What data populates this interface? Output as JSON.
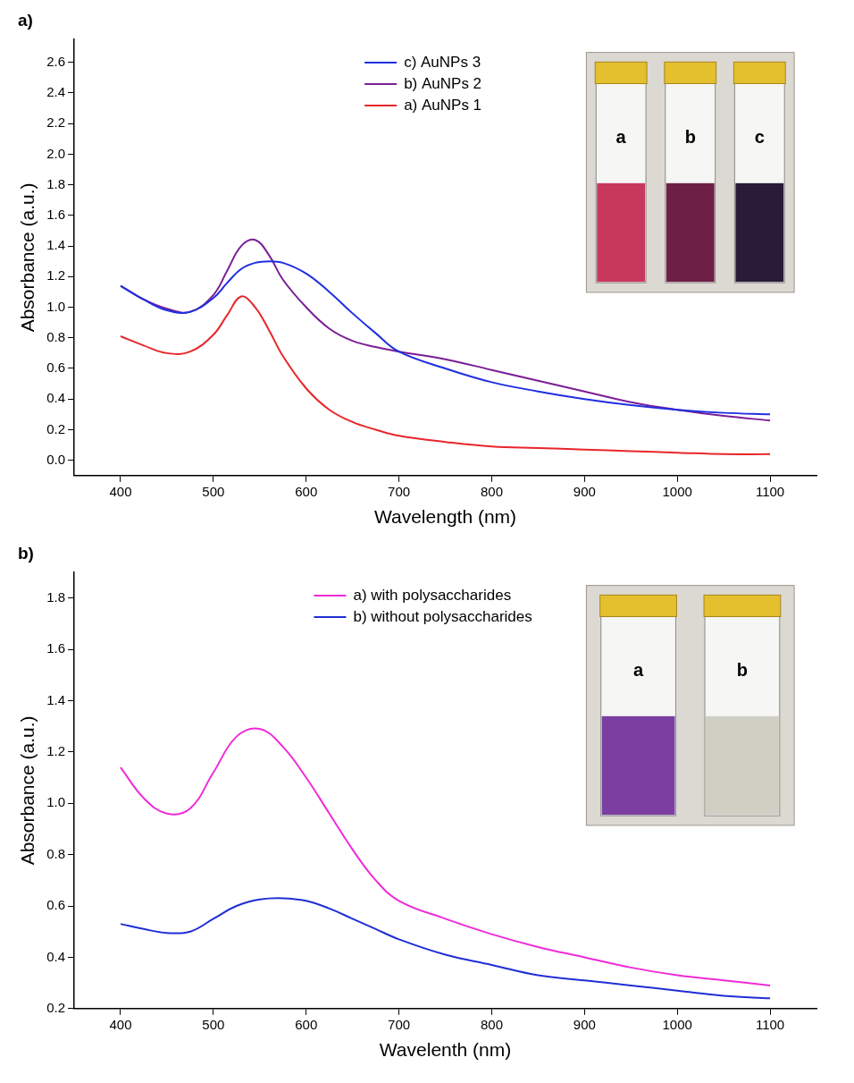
{
  "chart_data": [
    {
      "type": "line",
      "title": "a)",
      "x_label": "Wavelength (nm)",
      "y_label": "Absorbance (a.u.)",
      "x": [
        400,
        425,
        450,
        475,
        500,
        515,
        530,
        545,
        560,
        575,
        600,
        625,
        650,
        675,
        700,
        750,
        800,
        850,
        900,
        950,
        1000,
        1050,
        1100
      ],
      "series": [
        {
          "name": "c) AuNPs 3",
          "color": "#1f2fe0",
          "values": [
            1.14,
            1.05,
            0.98,
            0.97,
            1.06,
            1.16,
            1.25,
            1.29,
            1.3,
            1.29,
            1.22,
            1.1,
            0.96,
            0.83,
            0.71,
            0.6,
            0.51,
            0.45,
            0.4,
            0.36,
            0.33,
            0.31,
            0.3
          ]
        },
        {
          "name": "b) AuNPs 2",
          "color": "#7a1e96",
          "values": [
            1.14,
            1.05,
            0.99,
            0.97,
            1.08,
            1.24,
            1.4,
            1.44,
            1.34,
            1.18,
            1.0,
            0.86,
            0.78,
            0.74,
            0.71,
            0.66,
            0.59,
            0.52,
            0.45,
            0.38,
            0.33,
            0.29,
            0.26
          ]
        },
        {
          "name": "a) AuNPs 1",
          "color": "#e8262b",
          "values": [
            0.81,
            0.75,
            0.7,
            0.71,
            0.82,
            0.95,
            1.07,
            1.0,
            0.85,
            0.68,
            0.47,
            0.33,
            0.25,
            0.2,
            0.16,
            0.12,
            0.09,
            0.08,
            0.07,
            0.06,
            0.05,
            0.04,
            0.04
          ]
        }
      ],
      "xlim": [
        350,
        1150
      ],
      "xticks": [
        400,
        500,
        600,
        700,
        800,
        900,
        1000,
        1100
      ],
      "ylim": [
        -0.1,
        2.75
      ],
      "yticks": [
        {
          "value": 0,
          "label": "0.0"
        },
        0.2,
        0.4,
        0.6,
        0.8,
        {
          "value": 1,
          "label": "1.0"
        },
        1.2,
        1.4,
        1.6,
        1.8,
        {
          "value": 2,
          "label": "2.0"
        },
        2.2,
        2.4,
        2.6
      ],
      "grid": false,
      "legend": "top",
      "annotations": [
        {
          "text": "a",
          "color": "#c8385c"
        },
        {
          "text": "b",
          "color": "#6e1f45"
        },
        {
          "text": "c",
          "color": "#2a1b38"
        }
      ]
    },
    {
      "type": "line",
      "title": "b)",
      "x_label": "Wavelenth (nm)",
      "y_label": "Absorbance (a.u.)",
      "x": [
        400,
        425,
        450,
        475,
        500,
        525,
        550,
        575,
        600,
        625,
        650,
        675,
        700,
        750,
        800,
        850,
        900,
        950,
        1000,
        1050,
        1100
      ],
      "series": [
        {
          "name": "a) with polysaccharides",
          "color": "#f02bd8",
          "values": [
            1.14,
            1.02,
            0.96,
            0.98,
            1.12,
            1.26,
            1.29,
            1.22,
            1.1,
            0.96,
            0.82,
            0.7,
            0.62,
            0.55,
            0.49,
            0.44,
            0.4,
            0.36,
            0.33,
            0.31,
            0.29
          ]
        },
        {
          "name": "b) without polysaccharides",
          "color": "#1f2fd6",
          "values": [
            0.53,
            0.51,
            0.495,
            0.5,
            0.55,
            0.6,
            0.625,
            0.63,
            0.62,
            0.59,
            0.55,
            0.51,
            0.47,
            0.41,
            0.37,
            0.33,
            0.31,
            0.29,
            0.27,
            0.25,
            0.24
          ]
        }
      ],
      "xlim": [
        350,
        1150
      ],
      "xticks": [
        400,
        500,
        600,
        700,
        800,
        900,
        1000,
        1100
      ],
      "ylim": [
        0.2,
        1.9
      ],
      "yticks": [
        0.2,
        0.4,
        0.6,
        0.8,
        {
          "value": 1,
          "label": "1.0"
        },
        1.2,
        1.4,
        1.6,
        1.8
      ],
      "grid": false,
      "legend": "top",
      "annotations": [
        {
          "text": "a",
          "color": "#7a3fa0"
        },
        {
          "text": "b",
          "color": "#cfcfc4"
        }
      ]
    }
  ]
}
